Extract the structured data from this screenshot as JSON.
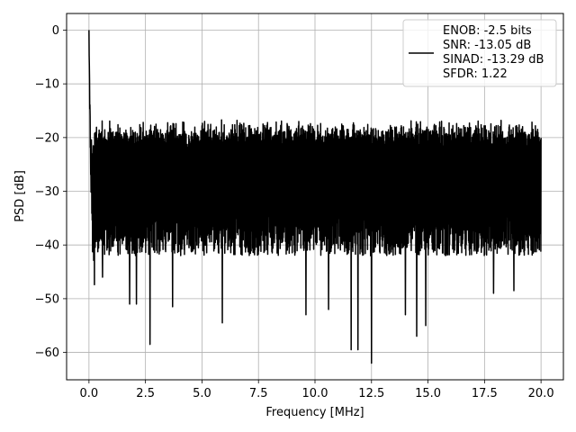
{
  "chart_data": {
    "type": "line",
    "title": "",
    "xlabel": "Frequency [MHz]",
    "ylabel": "PSD [dB]",
    "xlim": [
      -0.99,
      20.99
    ],
    "ylim": [
      -65.1,
      3.1
    ],
    "x_ticks": [
      0.0,
      2.5,
      5.0,
      7.5,
      10.0,
      12.5,
      15.0,
      17.5,
      20.0
    ],
    "x_tick_labels": [
      "0.0",
      "2.5",
      "5.0",
      "7.5",
      "10.0",
      "12.5",
      "15.0",
      "17.5",
      "20.0"
    ],
    "y_ticks": [
      0,
      -10,
      -20,
      -30,
      -40,
      -50,
      -60
    ],
    "y_tick_labels": [
      "0",
      "−10",
      "−20",
      "−30",
      "−40",
      "−50",
      "−60"
    ],
    "grid": true,
    "legend_position": "top-right",
    "line_color": "#000000",
    "series": [
      {
        "legend_lines": [
          "ENOB: -2.5 bits",
          "SNR: -13.05 dB",
          "SINAD: -13.29 dB",
          "SFDR: 1.22"
        ],
        "x_range": [
          0.0,
          20.0
        ],
        "peak": {
          "x": 0.0,
          "y": 0.0
        },
        "noise_floor_median": -28,
        "noise_upper_envelope": -18,
        "notable_dips": [
          {
            "x": 0.6,
            "y": -46
          },
          {
            "x": 1.8,
            "y": -51
          },
          {
            "x": 2.1,
            "y": -51
          },
          {
            "x": 2.7,
            "y": -58.5
          },
          {
            "x": 3.7,
            "y": -51.5
          },
          {
            "x": 5.9,
            "y": -54.5
          },
          {
            "x": 9.6,
            "y": -53
          },
          {
            "x": 10.6,
            "y": -52
          },
          {
            "x": 11.6,
            "y": -59.5
          },
          {
            "x": 11.9,
            "y": -59.5
          },
          {
            "x": 12.5,
            "y": -62
          },
          {
            "x": 14.0,
            "y": -53
          },
          {
            "x": 14.5,
            "y": -57
          },
          {
            "x": 14.9,
            "y": -55
          },
          {
            "x": 17.9,
            "y": -49
          },
          {
            "x": 18.8,
            "y": -48.5
          }
        ]
      }
    ]
  }
}
